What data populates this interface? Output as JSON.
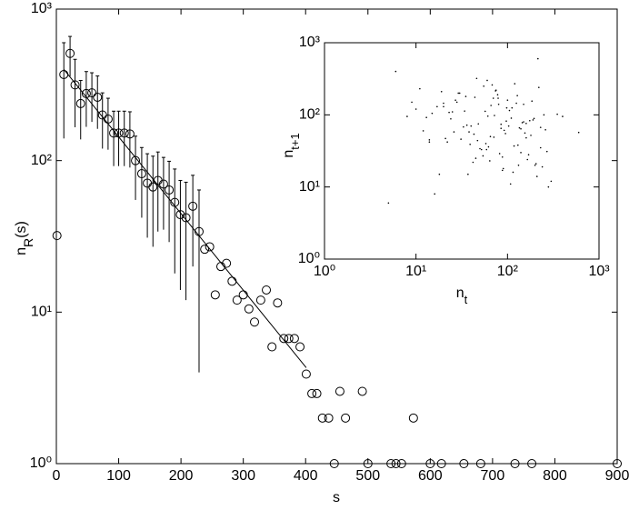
{
  "chart_data": [
    {
      "type": "scatter",
      "xlabel": "s",
      "ylabel": [
        "n",
        "R",
        "(s)"
      ],
      "color": "#000000",
      "ylog": true,
      "xlim": [
        0,
        900
      ],
      "xticks": [
        0,
        100,
        200,
        300,
        400,
        500,
        600,
        700,
        800,
        900
      ],
      "ylim": [
        1,
        1000
      ],
      "yticks": [
        {
          "value": 1,
          "label": "10⁰"
        },
        {
          "value": 10,
          "label": "10¹"
        },
        {
          "value": 100,
          "label": "10²"
        },
        {
          "value": 1000,
          "label": "10³"
        }
      ],
      "x": [
        1,
        12,
        22,
        30,
        39,
        48,
        57,
        66,
        74,
        83,
        92,
        100,
        109,
        118,
        127,
        137,
        146,
        155,
        163,
        172,
        181,
        190,
        199,
        208,
        219,
        229,
        238,
        246,
        255,
        264,
        273,
        282,
        290,
        300,
        309,
        318,
        328,
        337,
        346,
        355,
        365,
        373,
        382,
        391,
        401,
        410,
        418,
        427,
        437,
        446,
        455,
        464,
        491,
        500,
        537,
        545,
        554,
        573,
        600,
        618,
        654,
        681,
        736,
        763,
        900
      ],
      "values": [
        32,
        370,
        510,
        316,
        238,
        277,
        280,
        262,
        200,
        188,
        152,
        152,
        152,
        150,
        100,
        82,
        71,
        67,
        74,
        70,
        64,
        53,
        44,
        42,
        50,
        34,
        26,
        27,
        13,
        20,
        21,
        16,
        12,
        13,
        10.5,
        8.6,
        12,
        14,
        5.9,
        11.5,
        6.7,
        6.7,
        6.7,
        5.9,
        3.9,
        2.9,
        2.9,
        2,
        2,
        1,
        3,
        2,
        3,
        1,
        1,
        1,
        1,
        2,
        1,
        1,
        1,
        1,
        1,
        1,
        1
      ],
      "errors": [
        null,
        230,
        150,
        150,
        100,
        110,
        100,
        100,
        80,
        70,
        60,
        60,
        60,
        60,
        45,
        40,
        40,
        40,
        40,
        35,
        35,
        35,
        30,
        30,
        30,
        30,
        null,
        null,
        null,
        null,
        null,
        null,
        null,
        null,
        null,
        null,
        null,
        null,
        null,
        null,
        null,
        null,
        null,
        null,
        null,
        null,
        null,
        null,
        null,
        null,
        null,
        null,
        null,
        null,
        null,
        null,
        null,
        null,
        null,
        null,
        null,
        null,
        null,
        null,
        null
      ],
      "fit": {
        "x": [
          12,
          401
        ],
        "values": [
          400,
          4.3
        ]
      }
    },
    {
      "type": "scatter",
      "xlabel": [
        "n",
        "t"
      ],
      "ylabel": [
        "n",
        "t+1"
      ],
      "color": "#000000",
      "xlog": true,
      "ylog": true,
      "xlim": [
        1,
        1000
      ],
      "xticks": [
        {
          "value": 1,
          "label": "10⁰"
        },
        {
          "value": 10,
          "label": "10¹"
        },
        {
          "value": 100,
          "label": "10²"
        },
        {
          "value": 1000,
          "label": "10³"
        }
      ],
      "ylim": [
        1,
        1000
      ],
      "yticks": [
        {
          "value": 1,
          "label": "10⁰"
        },
        {
          "value": 10,
          "label": "10¹"
        },
        {
          "value": 100,
          "label": "10²"
        },
        {
          "value": 1000,
          "label": "10³"
        }
      ],
      "x": [
        12,
        45,
        80,
        150,
        230,
        30,
        18,
        95,
        60,
        110,
        200,
        25,
        14,
        70,
        40,
        300,
        8,
        55,
        130,
        20,
        85,
        170,
        35,
        65,
        250,
        16,
        48,
        100,
        22,
        75,
        140,
        10,
        38,
        90,
        190,
        28,
        58,
        120,
        260,
        15,
        42,
        78,
        160,
        24,
        66,
        210,
        33,
        11,
        52,
        105,
        180,
        27,
        88,
        145,
        6,
        47,
        72,
        125,
        240,
        19,
        36,
        62,
        98,
        155,
        280,
        13,
        44,
        82,
        135,
        220,
        21,
        57,
        115,
        175,
        9,
        39,
        68,
        92,
        165,
        350,
        17,
        50,
        85,
        128,
        205,
        26,
        61,
        108,
        185,
        31,
        74,
        140,
        270,
        23,
        54,
        97,
        150,
        5,
        43,
        79,
        118,
        195,
        29,
        64,
        112,
        230,
        14,
        46,
        88,
        160,
        34,
        71,
        132,
        400,
        20,
        59,
        103,
        215,
        37,
        600
      ],
      "values": [
        60,
        25,
        140,
        80,
        35,
        200,
        15,
        55,
        300,
        90,
        20,
        110,
        45,
        170,
        70,
        12,
        95,
        250,
        38,
        130,
        65,
        28,
        180,
        50,
        100,
        8,
        75,
        160,
        42,
        220,
        30,
        120,
        58,
        18,
        85,
        150,
        40,
        270,
        62,
        105,
        22,
        190,
        48,
        88,
        135,
        14,
        68,
        230,
        33,
        115,
        52,
        160,
        26,
        78,
        400,
        44,
        98,
        145,
        19,
        210,
        72,
        36,
        125,
        56,
        10,
        92,
        175,
        29,
        66,
        240,
        47,
        112,
        16,
        83,
        150,
        39,
        260,
        61,
        24,
        102,
        130,
        34,
        74,
        185,
        21,
        58,
        96,
        11,
        155,
        46,
        215,
        64,
        31,
        108,
        27,
        82,
        140,
        6,
        54,
        170,
        37,
        89,
        200,
        23,
        125,
        67,
        42,
        320,
        17,
        76,
        113,
        49,
        20,
        95,
        145,
        33,
        70,
        600,
        15,
        57
      ]
    }
  ]
}
